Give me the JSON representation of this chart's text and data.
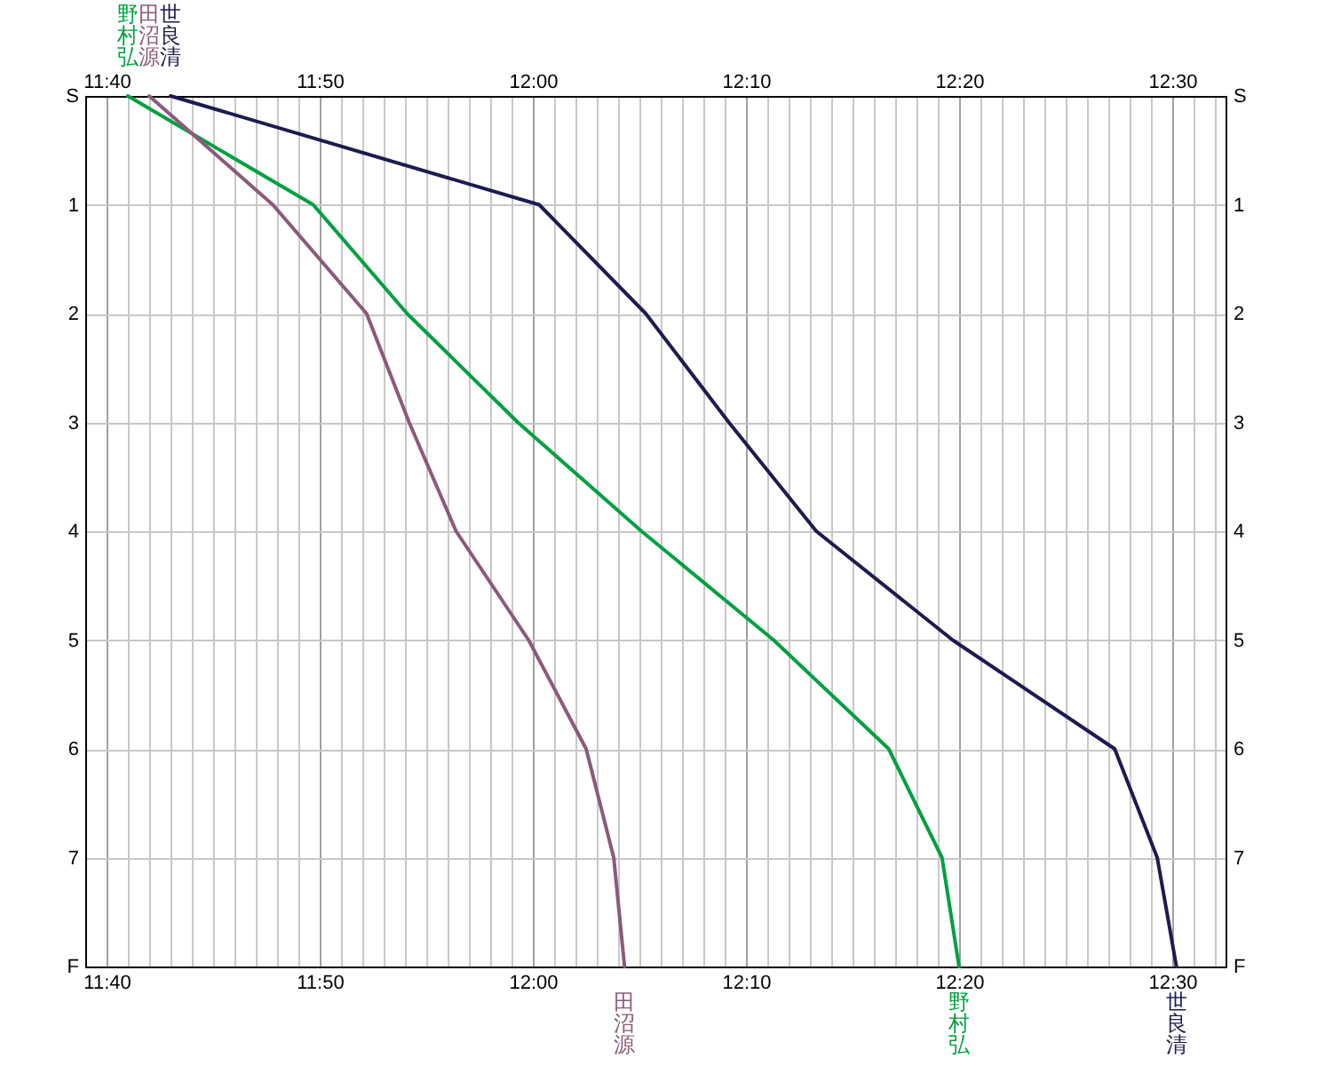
{
  "chart_data": {
    "type": "line",
    "xlim": [
      11.65,
      12.5417
    ],
    "xticks": [
      {
        "value": 11.6667,
        "label": "11:40"
      },
      {
        "value": 11.6833,
        "label": null
      },
      {
        "value": 11.7,
        "label": null
      },
      {
        "value": 11.7167,
        "label": null
      },
      {
        "value": 11.7333,
        "label": null
      },
      {
        "value": 11.75,
        "label": null
      },
      {
        "value": 11.7667,
        "label": null
      },
      {
        "value": 11.7833,
        "label": null
      },
      {
        "value": 11.8,
        "label": null
      },
      {
        "value": 11.8167,
        "label": null
      },
      {
        "value": 11.8333,
        "label": "11:50"
      },
      {
        "value": 11.85,
        "label": null
      },
      {
        "value": 11.8667,
        "label": null
      },
      {
        "value": 11.8833,
        "label": null
      },
      {
        "value": 11.9,
        "label": null
      },
      {
        "value": 11.9167,
        "label": null
      },
      {
        "value": 11.9333,
        "label": null
      },
      {
        "value": 11.95,
        "label": null
      },
      {
        "value": 11.9667,
        "label": null
      },
      {
        "value": 11.9833,
        "label": null
      },
      {
        "value": 12,
        "label": "12:00"
      },
      {
        "value": 12.0167,
        "label": null
      },
      {
        "value": 12.0333,
        "label": null
      },
      {
        "value": 12.05,
        "label": null
      },
      {
        "value": 12.0667,
        "label": null
      },
      {
        "value": 12.0833,
        "label": null
      },
      {
        "value": 12.1,
        "label": null
      },
      {
        "value": 12.1167,
        "label": null
      },
      {
        "value": 12.1333,
        "label": null
      },
      {
        "value": 12.15,
        "label": null
      },
      {
        "value": 12.1667,
        "label": "12:10"
      },
      {
        "value": 12.1833,
        "label": null
      },
      {
        "value": 12.2,
        "label": null
      },
      {
        "value": 12.2167,
        "label": null
      },
      {
        "value": 12.2333,
        "label": null
      },
      {
        "value": 12.25,
        "label": null
      },
      {
        "value": 12.2667,
        "label": null
      },
      {
        "value": 12.2833,
        "label": null
      },
      {
        "value": 12.3,
        "label": null
      },
      {
        "value": 12.3167,
        "label": null
      },
      {
        "value": 12.3333,
        "label": "12:20"
      },
      {
        "value": 12.35,
        "label": null
      },
      {
        "value": 12.3667,
        "label": null
      },
      {
        "value": 12.3833,
        "label": null
      },
      {
        "value": 12.4,
        "label": null
      },
      {
        "value": 12.4167,
        "label": null
      },
      {
        "value": 12.4333,
        "label": null
      },
      {
        "value": 12.45,
        "label": null
      },
      {
        "value": 12.4667,
        "label": null
      },
      {
        "value": 12.4833,
        "label": null
      },
      {
        "value": 12.5,
        "label": "12:30"
      },
      {
        "value": 12.5167,
        "label": null
      },
      {
        "value": 12.5333,
        "label": null
      }
    ],
    "x2lim": [
      11.65,
      12.5417
    ],
    "x2ticks": [
      {
        "value": 11.6667,
        "label": "11:40"
      },
      {
        "value": 11.8333,
        "label": "11:50"
      },
      {
        "value": 12,
        "label": "12:00"
      },
      {
        "value": 12.1667,
        "label": "12:10"
      },
      {
        "value": 12.3333,
        "label": "12:20"
      },
      {
        "value": 12.5,
        "label": "12:30"
      }
    ],
    "ylim": [
      8,
      0
    ],
    "yticks": [
      {
        "value": 0,
        "label": "S"
      },
      1,
      2,
      3,
      4,
      5,
      6,
      7,
      {
        "value": 8,
        "label": "F"
      }
    ],
    "y2lim": [
      8,
      0
    ],
    "y2ticks": [
      {
        "value": 0,
        "label": "S"
      },
      1,
      2,
      3,
      4,
      5,
      6,
      7,
      {
        "value": 8,
        "label": "F"
      }
    ],
    "grid": true,
    "legend": false,
    "line_style": "solid",
    "series": [
      {
        "name": "野村弘",
        "color": "#00a040",
        "x": [
          11.6833,
          11.8283,
          11.9017,
          11.9883,
          12.085,
          12.1883,
          12.2783,
          12.32,
          12.3333
        ],
        "values": [
          0,
          1,
          2,
          3,
          4,
          5,
          6,
          7,
          8
        ]
      },
      {
        "name": "田沼源",
        "color": "#8c5a78",
        "x": [
          11.7,
          11.7967,
          11.87,
          11.9033,
          11.94,
          11.9967,
          12.0417,
          12.0633,
          12.0717
        ],
        "values": [
          0,
          1,
          2,
          3,
          4,
          5,
          6,
          7,
          8
        ]
      },
      {
        "name": "世良清",
        "color": "#1c1c50",
        "x": [
          11.7167,
          12.005,
          12.0883,
          12.1533,
          12.2217,
          12.3283,
          12.455,
          12.4883,
          12.5033
        ],
        "values": [
          0,
          1,
          2,
          3,
          4,
          5,
          6,
          7,
          8
        ]
      }
    ]
  }
}
